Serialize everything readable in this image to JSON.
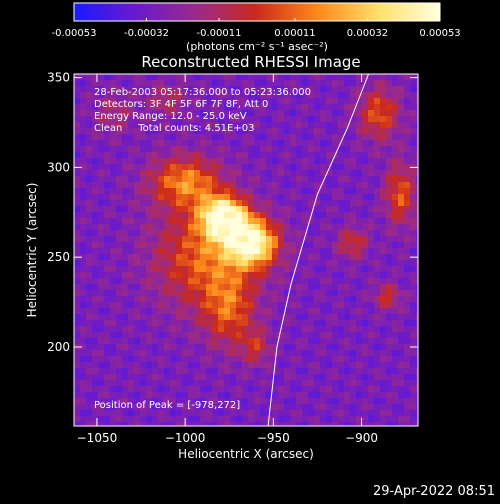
{
  "colorbar": {
    "tick_labels": [
      "-0.00053",
      "-0.00032",
      "-0.00011",
      "0.00011",
      "0.00032",
      "0.00053"
    ],
    "tick_values": [
      -0.00053,
      -0.00032,
      -0.00011,
      0.00011,
      0.00032,
      0.00053
    ],
    "range": [
      -0.00053,
      0.00053
    ],
    "units_label": "(photons cm⁻² s⁻¹ asec⁻²)",
    "colors": [
      "#1a1aff",
      "#6a1acd",
      "#9a2a8a",
      "#cc2a1a",
      "#ff8a1a",
      "#ffe06a",
      "#ffffe0"
    ]
  },
  "chart_data": {
    "type": "heatmap",
    "title": "Reconstructed RHESSI Image",
    "xlabel": "Heliocentric X (arcsec)",
    "ylabel": "Heliocentric Y (arcsec)",
    "xlim": [
      -1063,
      -868
    ],
    "ylim": [
      156,
      352
    ],
    "x_ticks": [
      -1050,
      -1000,
      -950,
      -900
    ],
    "x_tick_labels": [
      "−1050",
      "−1000",
      "−950",
      "−900"
    ],
    "y_ticks": [
      200,
      250,
      300,
      350
    ],
    "y_tick_labels": [
      "200",
      "250",
      "300",
      "350"
    ],
    "peak_position": [
      -978,
      272
    ],
    "limb": [
      [
        -953,
        156
      ],
      [
        -948,
        200
      ],
      [
        -940,
        235
      ],
      [
        -925,
        285
      ],
      [
        -908,
        322
      ],
      [
        -896,
        352
      ]
    ],
    "sources": [
      {
        "x": -978,
        "y": 272,
        "sx": 9,
        "sy": 8,
        "amp": 1.0
      },
      {
        "x": -962,
        "y": 258,
        "sx": 10,
        "sy": 9,
        "amp": 0.95
      },
      {
        "x": -1000,
        "y": 292,
        "sx": 14,
        "sy": 10,
        "amp": 0.55
      },
      {
        "x": -988,
        "y": 250,
        "sx": 20,
        "sy": 20,
        "amp": 0.5
      },
      {
        "x": -975,
        "y": 220,
        "sx": 10,
        "sy": 14,
        "amp": 0.4
      },
      {
        "x": -960,
        "y": 200,
        "sx": 6,
        "sy": 7,
        "amp": 0.3
      },
      {
        "x": -890,
        "y": 330,
        "sx": 8,
        "sy": 10,
        "amp": 0.45
      },
      {
        "x": -878,
        "y": 285,
        "sx": 6,
        "sy": 12,
        "amp": 0.45
      },
      {
        "x": -905,
        "y": 258,
        "sx": 6,
        "sy": 6,
        "amp": 0.35
      },
      {
        "x": -885,
        "y": 228,
        "sx": 5,
        "sy": 5,
        "amp": 0.35
      },
      {
        "x": -1040,
        "y": 330,
        "sx": 8,
        "sy": 8,
        "amp": 0.2
      },
      {
        "x": -1010,
        "y": 338,
        "sx": 8,
        "sy": 6,
        "amp": 0.25
      }
    ]
  },
  "info": {
    "time_range": "28-Feb-2003 05:17:36.000 to 05:23:36.000",
    "detectors": "Detectors: 3F 4F 5F 6F 7F 8F, Att 0",
    "energy": "Energy Range: 12.0 - 25.0 keV",
    "clean": "Clean     Total counts: 4.51E+03",
    "peak": "Position of Peak = [-978,272]"
  },
  "timestamp": "29-Apr-2022 08:51"
}
